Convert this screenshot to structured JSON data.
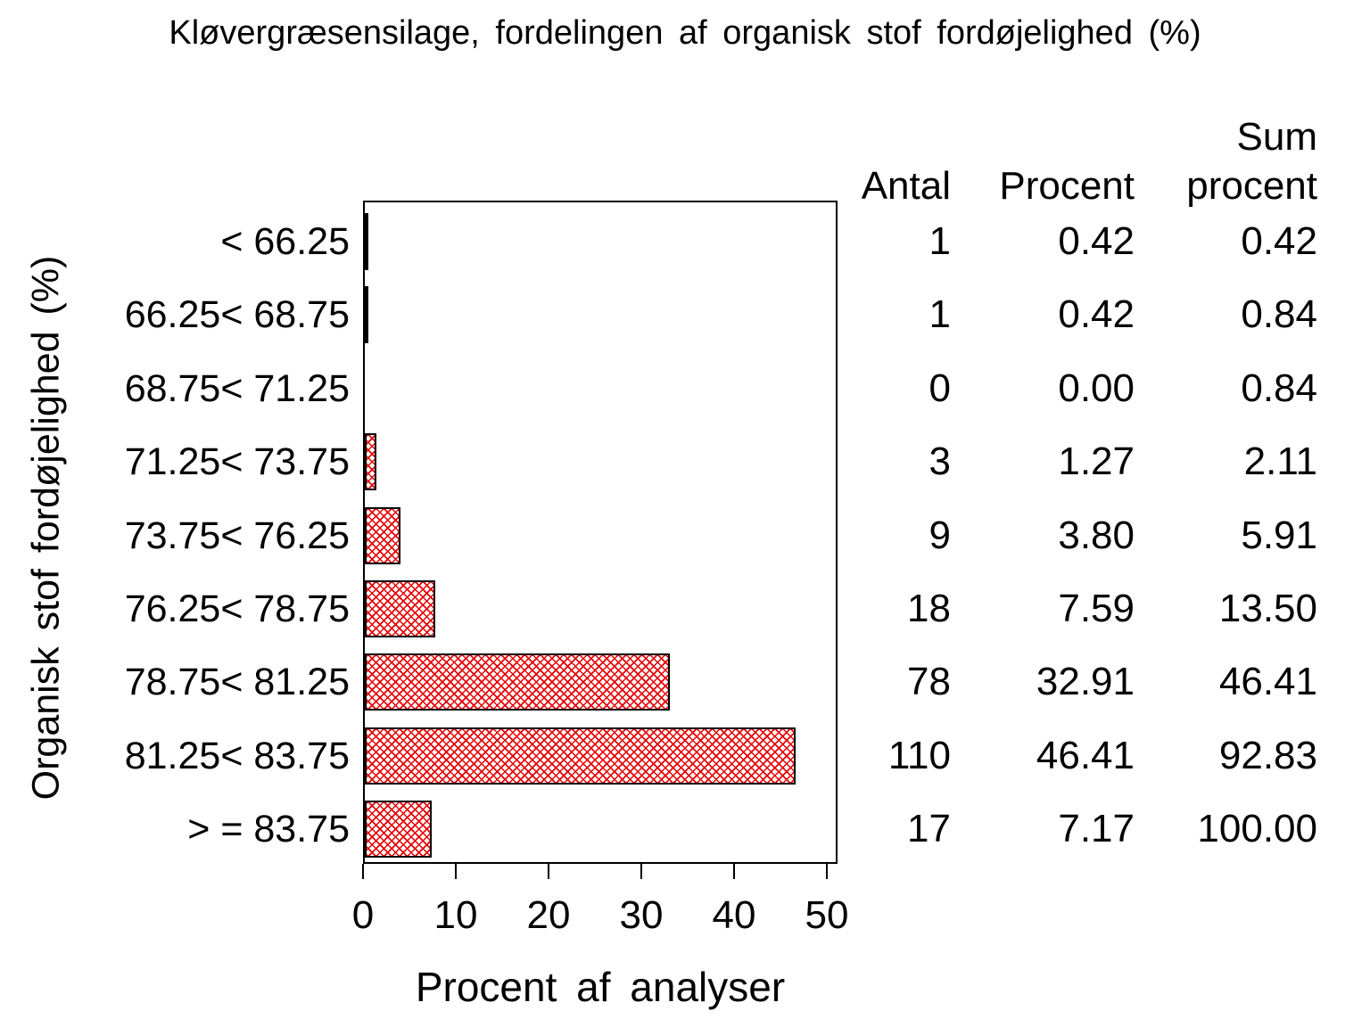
{
  "title": "Kløvergræsensilage, fordelingen af organisk stof fordøjelighed (%)",
  "colors": {
    "background": "#ffffff",
    "text": "#000000",
    "bar_hatch_red": "#e60000",
    "bar_border": "#000000"
  },
  "chart_data": {
    "type": "bar",
    "orientation": "horizontal",
    "title": "Kløvergræsensilage, fordelingen af organisk stof fordøjelighed (%)",
    "xlabel": "Procent af analyser",
    "ylabel": "Organisk stof fordøjelighed (%)",
    "categories": [
      "< 66.25",
      "66.25< 68.75",
      "68.75< 71.25",
      "71.25< 73.75",
      "73.75< 76.25",
      "76.25< 78.75",
      "78.75< 81.25",
      "81.25< 83.75",
      "> = 83.75"
    ],
    "series": [
      {
        "name": "Antal",
        "values": [
          1,
          1,
          0,
          3,
          9,
          18,
          78,
          110,
          17
        ]
      },
      {
        "name": "Procent",
        "values": [
          0.42,
          0.42,
          0.0,
          1.27,
          3.8,
          7.59,
          32.91,
          46.41,
          7.17
        ]
      },
      {
        "name": "Sum procent",
        "values": [
          0.42,
          0.84,
          0.84,
          2.11,
          5.91,
          13.5,
          46.41,
          92.83,
          100.0
        ]
      }
    ],
    "bar_value_series": "Procent",
    "xticks": [
      0,
      10,
      20,
      30,
      40,
      50
    ],
    "xlim": [
      0,
      51
    ],
    "grid": false,
    "legend": "none",
    "bar_pattern": "red diagonal crosshatch on white"
  },
  "table": {
    "headers": {
      "antal": "Antal",
      "procent": "Procent",
      "sum_line1": "Sum",
      "sum_line2": "procent"
    }
  }
}
